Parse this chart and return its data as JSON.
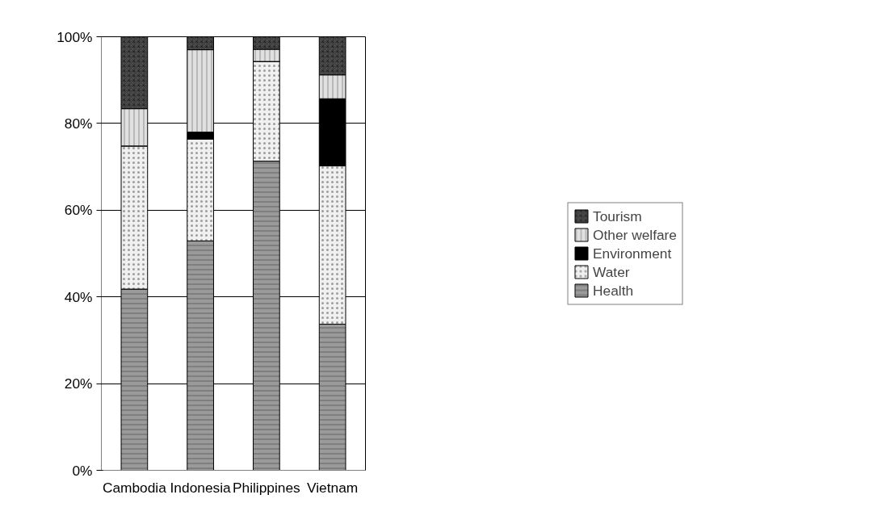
{
  "chart_data": {
    "type": "bar",
    "stacked": true,
    "categories": [
      "Cambodia",
      "Indonesia",
      "Philippines",
      "Vietnam"
    ],
    "series": [
      {
        "name": "Health",
        "color": "#9a9a9a",
        "values": [
          41.8,
          52.9,
          71.3,
          33.7
        ]
      },
      {
        "name": "Water",
        "color": "#f0f0f0",
        "values": [
          33.0,
          23.5,
          23.0,
          36.5
        ]
      },
      {
        "name": "Environment",
        "color": "#000000",
        "values": [
          0,
          1.6,
          0,
          15.5
        ]
      },
      {
        "name": "Other welfare",
        "color": "#e0e0e0",
        "values": [
          8.6,
          19.0,
          2.8,
          5.5
        ]
      },
      {
        "name": "Tourism",
        "color": "#505050",
        "values": [
          16.6,
          3.0,
          2.9,
          8.8
        ]
      }
    ],
    "ylim": [
      0,
      100
    ],
    "yticks": [
      {
        "value": 0,
        "label": "0%"
      },
      {
        "value": 20,
        "label": "20%"
      },
      {
        "value": 40,
        "label": "40%"
      },
      {
        "value": 60,
        "label": "60%"
      },
      {
        "value": 80,
        "label": "80%"
      },
      {
        "value": 100,
        "label": "100%"
      }
    ],
    "grid": "y",
    "legend": "right"
  }
}
